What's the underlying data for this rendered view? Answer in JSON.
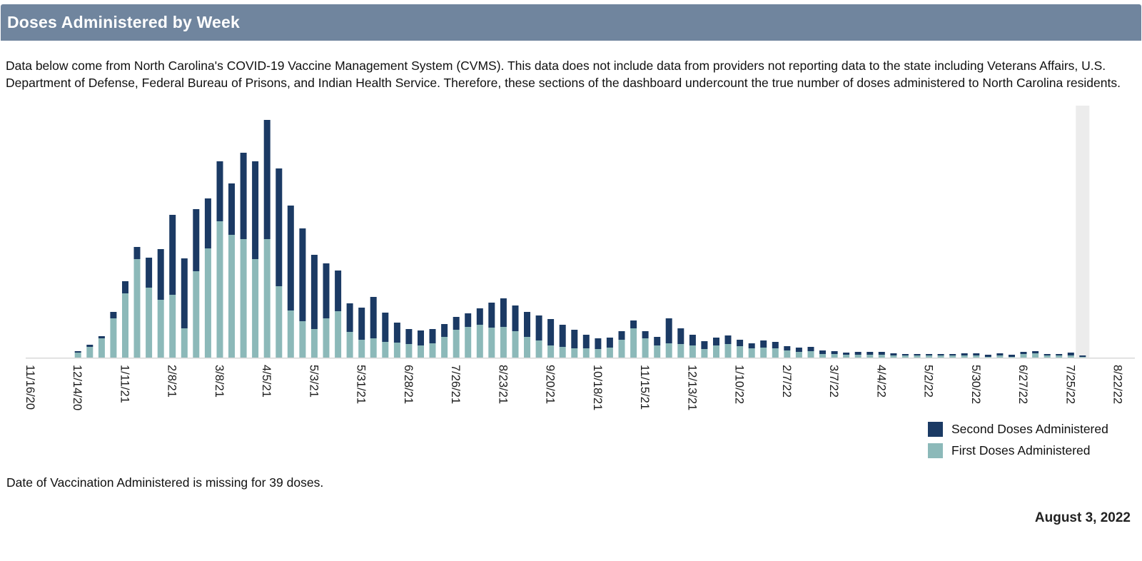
{
  "header": {
    "title": "Doses Administered by Week",
    "bg_color": "#70859E"
  },
  "description": "Data below come from North Carolina's COVID-19 Vaccine Management System (CVMS). This data does not include data from providers not reporting data to the state including Veterans Affairs, U.S. Department of Defense, Federal Bureau of Prisons, and Indian Health Service. Therefore, these sections of the dashboard undercount the true number of doses administered to North Carolina residents.",
  "chart_data": {
    "type": "bar",
    "stacked": true,
    "title": "Doses Administered by Week",
    "xlabel": "",
    "ylabel": "",
    "y_axis_note": "no y-axis scale shown; values are estimated relative heights (screen px, 1 px ≈ 1.8k doses)",
    "grid": false,
    "legend_position": "bottom-right",
    "tick_every_n_weeks": 4,
    "axis_tick_labels": [
      "11/16/20",
      "12/14/20",
      "1/11/21",
      "2/8/21",
      "3/8/21",
      "4/5/21",
      "5/3/21",
      "5/31/21",
      "6/28/21",
      "7/26/21",
      "8/23/21",
      "9/20/21",
      "10/18/21",
      "11/15/21",
      "12/13/21",
      "1/10/22",
      "2/7/22",
      "3/7/22",
      "4/4/22",
      "5/2/22",
      "5/30/22",
      "6/27/22",
      "7/25/22",
      "8/22/22"
    ],
    "categories": [
      "11/16/20",
      "11/23/20",
      "11/30/20",
      "12/7/20",
      "12/14/20",
      "12/21/20",
      "12/28/20",
      "1/4/21",
      "1/11/21",
      "1/18/21",
      "1/25/21",
      "2/1/21",
      "2/8/21",
      "2/15/21",
      "2/22/21",
      "3/1/21",
      "3/8/21",
      "3/15/21",
      "3/22/21",
      "3/29/21",
      "4/5/21",
      "4/12/21",
      "4/19/21",
      "4/26/21",
      "5/3/21",
      "5/10/21",
      "5/17/21",
      "5/24/21",
      "5/31/21",
      "6/7/21",
      "6/14/21",
      "6/21/21",
      "6/28/21",
      "7/5/21",
      "7/12/21",
      "7/19/21",
      "7/26/21",
      "8/2/21",
      "8/9/21",
      "8/16/21",
      "8/23/21",
      "8/30/21",
      "9/6/21",
      "9/13/21",
      "9/20/21",
      "9/27/21",
      "10/4/21",
      "10/11/21",
      "10/18/21",
      "10/25/21",
      "11/1/21",
      "11/8/21",
      "11/15/21",
      "11/22/21",
      "11/29/21",
      "12/6/21",
      "12/13/21",
      "12/20/21",
      "12/27/21",
      "1/3/22",
      "1/10/22",
      "1/17/22",
      "1/24/22",
      "1/31/22",
      "2/7/22",
      "2/14/22",
      "2/21/22",
      "2/28/22",
      "3/7/22",
      "3/14/22",
      "3/21/22",
      "3/28/22",
      "4/4/22",
      "4/11/22",
      "4/18/22",
      "4/25/22",
      "5/2/22",
      "5/9/22",
      "5/16/22",
      "5/23/22",
      "5/30/22",
      "6/6/22",
      "6/13/22",
      "6/20/22",
      "6/27/22",
      "7/4/22",
      "7/11/22",
      "7/18/22",
      "7/25/22",
      "8/1/22",
      "8/8/22",
      "8/15/22",
      "8/22/22"
    ],
    "series": [
      {
        "name": "First Doses Administered",
        "color": "#8CB9B9",
        "values": [
          0,
          0,
          0,
          0,
          7,
          15,
          27,
          55,
          90,
          138,
          98,
          81,
          88,
          41,
          121,
          153,
          191,
          172,
          166,
          138,
          166,
          100,
          66,
          51,
          40,
          55,
          65,
          36,
          25,
          27,
          22,
          21,
          19,
          17,
          20,
          29,
          39,
          43,
          46,
          42,
          43,
          37,
          29,
          24,
          17,
          15,
          13,
          13,
          12,
          14,
          25,
          41,
          27,
          17,
          20,
          19,
          17,
          12,
          17,
          19,
          16,
          13,
          14,
          13,
          10,
          8,
          9,
          5,
          5,
          4,
          4,
          4,
          4,
          3,
          3,
          3,
          3,
          3,
          3,
          3,
          3,
          1,
          3,
          1,
          5,
          6,
          3,
          3,
          3,
          1,
          0,
          0,
          0
        ]
      },
      {
        "name": "Second Doses Administered",
        "color": "#1B3A64",
        "values": [
          0,
          0,
          0,
          0,
          2,
          3,
          3,
          9,
          17,
          17,
          42,
          71,
          112,
          98,
          87,
          70,
          84,
          72,
          121,
          137,
          167,
          165,
          147,
          130,
          104,
          77,
          57,
          40,
          45,
          58,
          41,
          28,
          21,
          21,
          20,
          18,
          18,
          19,
          23,
          35,
          40,
          36,
          35,
          35,
          37,
          31,
          26,
          19,
          15,
          14,
          12,
          11,
          10,
          12,
          35,
          22,
          15,
          11,
          11,
          12,
          9,
          7,
          10,
          9,
          6,
          6,
          6,
          5,
          4,
          3,
          4,
          4,
          4,
          3,
          2,
          2,
          2,
          2,
          2,
          3,
          3,
          3,
          3,
          3,
          3,
          3,
          2,
          2,
          4,
          2,
          0,
          0,
          0
        ]
      }
    ],
    "highlight_band": {
      "week": "8/1/22",
      "color": "#ECECEC",
      "note": "light gray band over most recent (incomplete) week"
    },
    "axis_line_color": "#D9D9D9",
    "label_color": "#1a1a1a"
  },
  "legend": {
    "items": [
      {
        "label": "Second Doses Administered",
        "color": "#1B3A64"
      },
      {
        "label": "First Doses Administered",
        "color": "#8CB9B9"
      }
    ]
  },
  "footnote": "Date of Vaccination Administered is missing for 39 doses.",
  "as_of_date": "August 3, 2022"
}
